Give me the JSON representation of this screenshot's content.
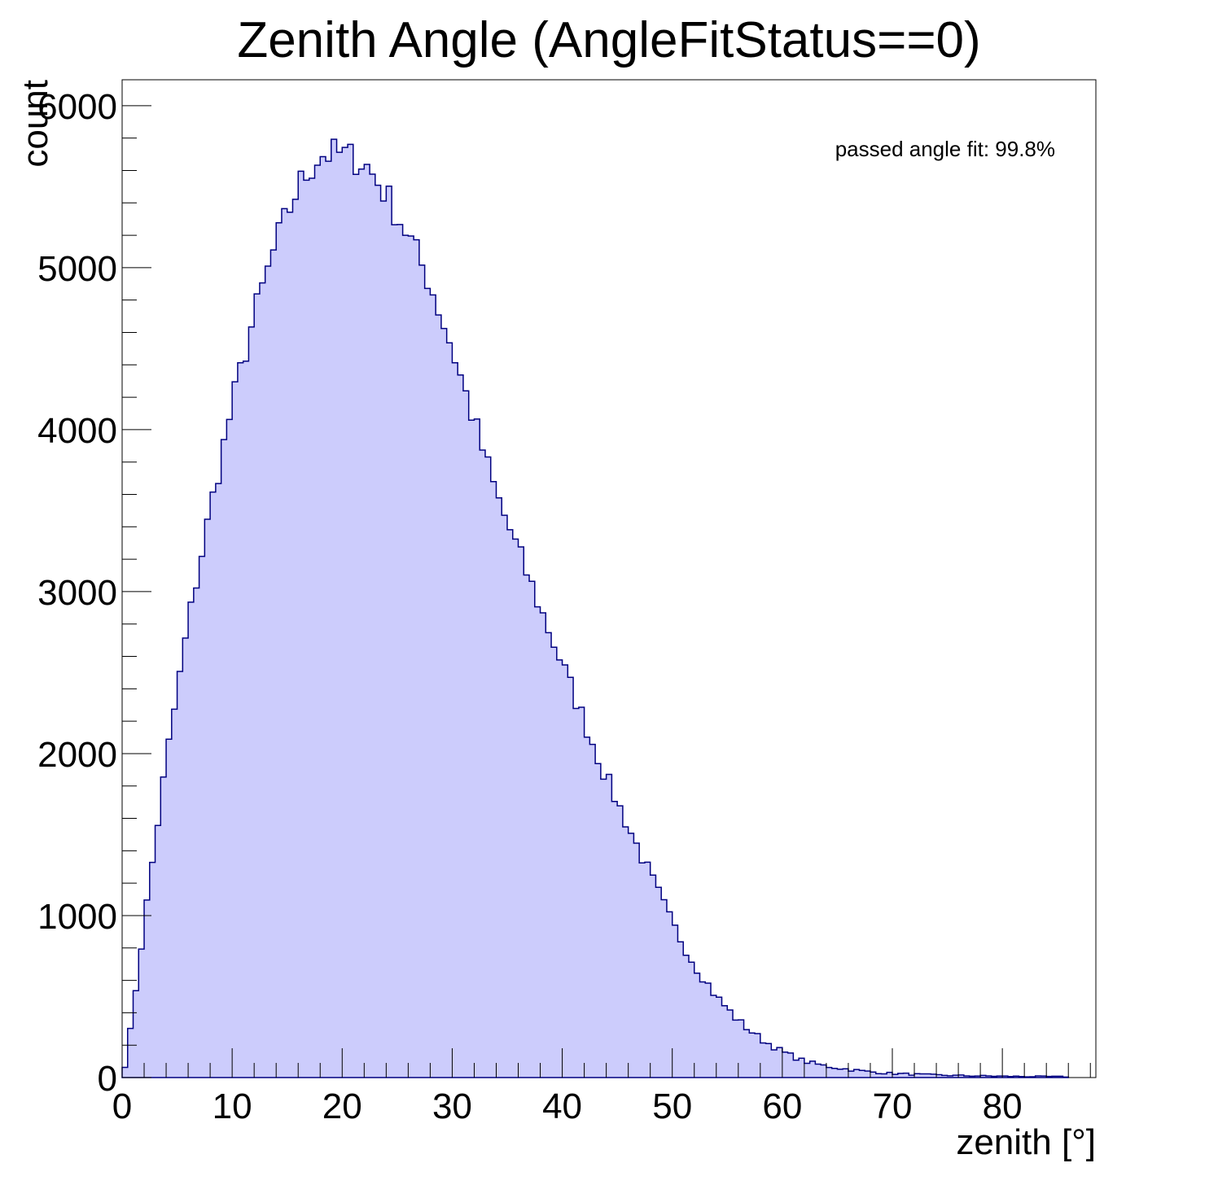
{
  "chart_data": {
    "type": "bar",
    "title": "Zenith Angle (AngleFitStatus==0)",
    "xlabel": "zenith [°]",
    "ylabel": "count",
    "annotation": "passed angle fit: 99.8%",
    "xlim": [
      0,
      88.5
    ],
    "ylim": [
      0,
      6160
    ],
    "x_ticks": [
      0,
      10,
      20,
      30,
      40,
      50,
      60,
      70,
      80
    ],
    "y_ticks": [
      0,
      1000,
      2000,
      3000,
      4000,
      5000,
      6000
    ],
    "x_tick_labels": [
      "0",
      "10",
      "20",
      "30",
      "40",
      "50",
      "60",
      "70",
      "80"
    ],
    "y_tick_labels": [
      "0",
      "1000",
      "2000",
      "3000",
      "4000",
      "5000",
      "6000"
    ],
    "bin_width": 0.5,
    "x": [
      0.5,
      2,
      4,
      6,
      8,
      10,
      12,
      14,
      16,
      18,
      20,
      22,
      24,
      26,
      28,
      30,
      32,
      34,
      36,
      38,
      40,
      42,
      44,
      46,
      48,
      50,
      52,
      54,
      56,
      58,
      60,
      62,
      64,
      66,
      68,
      70,
      72,
      74,
      76,
      78,
      80,
      82,
      84,
      86
    ],
    "values": [
      150,
      950,
      1950,
      2800,
      3500,
      4150,
      4700,
      5150,
      5500,
      5700,
      5700,
      5650,
      5450,
      5200,
      4900,
      4500,
      4050,
      3600,
      3250,
      2900,
      2550,
      2200,
      1850,
      1550,
      1250,
      950,
      700,
      500,
      350,
      240,
      160,
      100,
      70,
      50,
      35,
      25,
      20,
      15,
      12,
      10,
      8,
      7,
      6,
      5
    ],
    "colors": {
      "fill": "#ccccfc",
      "line": "#000080"
    },
    "grid": false,
    "legend": "none"
  }
}
